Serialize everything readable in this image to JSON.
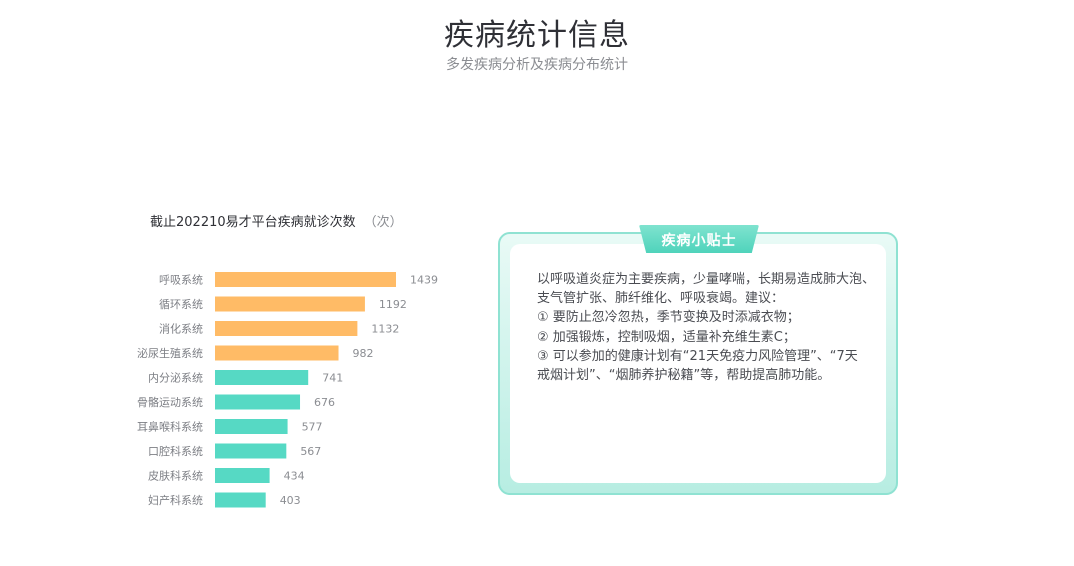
{
  "header": {
    "title": "疾病统计信息",
    "subtitle": "多发疾病分析及疾病分布统计"
  },
  "chart_caption": {
    "text": "截止202210易才平台疾病就诊次数",
    "unit": "（次）"
  },
  "chart_data": {
    "type": "bar",
    "orientation": "horizontal",
    "categories": [
      "呼吸系统",
      "循环系统",
      "消化系统",
      "泌尿生殖系统",
      "内分泌系统",
      "骨骼运动系统",
      "耳鼻喉科系统",
      "口腔科系统",
      "皮肤科系统",
      "妇产科系统"
    ],
    "values": [
      1439,
      1192,
      1132,
      982,
      741,
      676,
      577,
      567,
      434,
      403
    ],
    "title": "截止202210易才平台疾病就诊次数",
    "unit": "（次）",
    "xlim": [
      0,
      1439
    ],
    "grid": false,
    "legend": "none",
    "colors": {
      "highlight": "#ffbb66",
      "normal": "#56d9c4",
      "highlight_count": 4,
      "category_text": "#7d7f85",
      "value_text": "#8b8d92"
    }
  },
  "tips": {
    "title": "疾病小贴士",
    "lines": [
      "以呼吸道炎症为主要疾病，少量哮喘，长期易造成肺大泡、",
      "支气管扩张、肺纤维化、呼吸衰竭。建议：",
      "① 要防止忽冷忽热，季节变换及时添减衣物；",
      "② 加强锻炼，控制吸烟，适量补充维生素C；",
      "③ 可以参加的健康计划有“21天免疫力风险管理”、“7天",
      "戒烟计划”、“烟肺养护秘籍”等，帮助提高肺功能。"
    ]
  }
}
